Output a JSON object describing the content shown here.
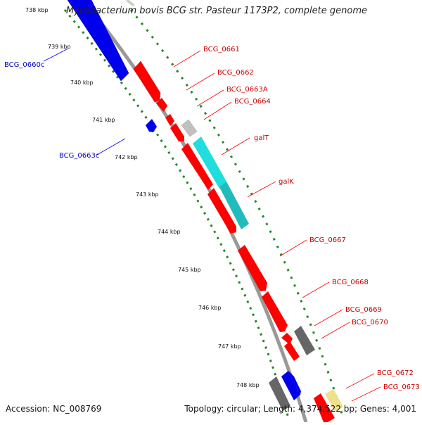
{
  "title": "Mycobacterium bovis BCG str. Pasteur 1173P2, complete genome",
  "footer": {
    "accession": "Accession: NC_008769",
    "summary": "Topology: circular; Length: 4,374,522 bp; Genes: 4,001"
  },
  "colors": {
    "forward_gene": "#ff0000",
    "reverse_gene": "#0000ee",
    "cds_light_gray": "#c0c0c0",
    "cds_dark_gray": "#666666",
    "cds_cyan": "#22dddd",
    "cds_yellow": "#eee08a",
    "backbone": "#999999",
    "ticks": "#228822"
  },
  "ticks": [
    "738 kbp",
    "739 kbp",
    "740 kbp",
    "741 kbp",
    "742 kbp",
    "743 kbp",
    "744 kbp",
    "745 kbp",
    "746 kbp",
    "747 kbp",
    "748 kbp"
  ],
  "gene_labels_right": [
    "BCG_0661",
    "BCG_0662",
    "BCG_0663A",
    "BCG_0664",
    "galT",
    "galK",
    "BCG_0667",
    "BCG_0668",
    "BCG_0669",
    "BCG_0670",
    "BCG_0672",
    "BCG_0673"
  ],
  "gene_labels_left": [
    "BCG_0660c",
    "BCG_0663c"
  ]
}
